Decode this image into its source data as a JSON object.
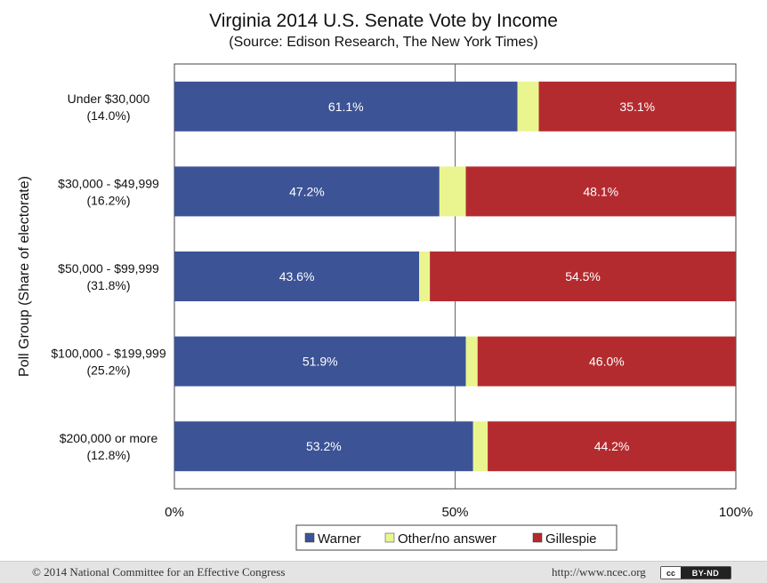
{
  "chart_data": {
    "type": "bar",
    "orientation": "horizontal",
    "stacked": true,
    "title": "Virginia 2014 U.S. Senate Vote by Income",
    "subtitle": "(Source: Edison Research, The New York Times)",
    "ylabel": "Poll Group (Share of electorate)",
    "xlabel": "",
    "xlim": [
      0,
      100
    ],
    "xticks": [
      0,
      50,
      100
    ],
    "xtick_labels": [
      "0%",
      "50%",
      "100%"
    ],
    "gridlines_at": [
      50
    ],
    "legend_position": "bottom",
    "categories": [
      {
        "label": "Under $30,000",
        "share": "(14.0%)"
      },
      {
        "label": "$30,000 - $49,999",
        "share": "(16.2%)"
      },
      {
        "label": "$50,000 - $99,999",
        "share": "(31.8%)"
      },
      {
        "label": "$100,000 - $199,999",
        "share": "(25.2%)"
      },
      {
        "label": "$200,000 or more",
        "share": "(12.8%)"
      }
    ],
    "series": [
      {
        "name": "Warner",
        "color": "#3c5396",
        "values": [
          61.1,
          47.2,
          43.6,
          51.9,
          53.2
        ],
        "labels": [
          "61.1%",
          "47.2%",
          "43.6%",
          "51.9%",
          "53.2%"
        ]
      },
      {
        "name": "Other/no answer",
        "color": "#eaf58f",
        "values": [
          3.8,
          4.7,
          1.9,
          2.1,
          2.6
        ]
      },
      {
        "name": "Gillespie",
        "color": "#b42b2f",
        "values": [
          35.1,
          48.1,
          54.5,
          46.0,
          44.2
        ],
        "labels": [
          "35.1%",
          "48.1%",
          "54.5%",
          "46.0%",
          "44.2%"
        ]
      }
    ]
  },
  "footer": {
    "copyright": "© 2014 National Committee for an Effective Congress",
    "url": "http://www.ncec.org",
    "license_cc": "cc",
    "license_type": "BY-ND"
  }
}
